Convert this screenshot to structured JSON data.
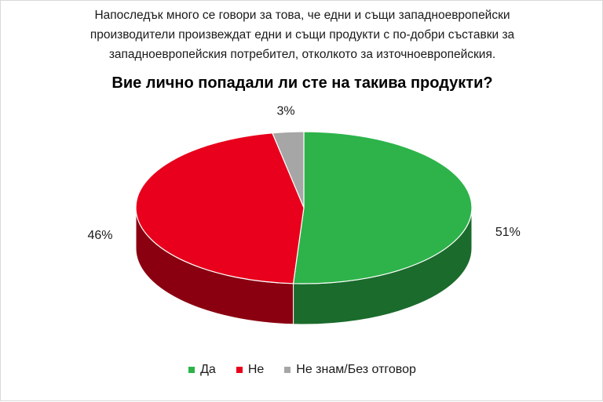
{
  "chart_data": {
    "type": "pie",
    "subtitle_lines": [
      "Напоследък много се говори за това, че едни и същи западноевропейски",
      "производители произвеждат едни и същи продукти с по-добри съставки за",
      "западноевропейския потребител, отколкото за източноевропейския."
    ],
    "title": "Вие лично попадали ли сте на такива продукти?",
    "slices": [
      {
        "label": "Да",
        "value": 51,
        "display": "51%",
        "color": "#2db34a",
        "side_color": "#1b6b2c"
      },
      {
        "label": "Не",
        "value": 46,
        "display": "46%",
        "color": "#e8001c",
        "side_color": "#8a0010"
      },
      {
        "label": "Не знам/Без отговор",
        "value": 3,
        "display": "3%",
        "color": "#a6a6a6",
        "side_color": "#636363"
      }
    ],
    "style": "3d",
    "legend_position": "bottom"
  }
}
